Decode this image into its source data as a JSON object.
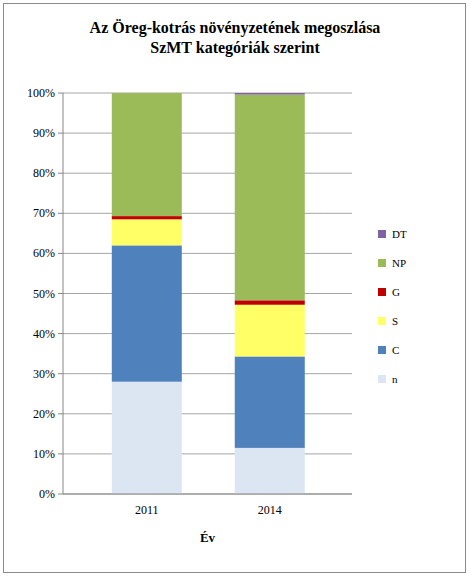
{
  "chart_data": {
    "type": "bar",
    "stacked": true,
    "title": "Az Öreg-kotrás növényzetének megoszlása SzMT kategóriák szerint",
    "x_label": "Év",
    "categories": [
      "2011",
      "2014"
    ],
    "series": [
      {
        "name": "n",
        "color": "#dce6f2",
        "values": [
          28,
          11.5
        ]
      },
      {
        "name": "C",
        "color": "#4f81bd",
        "values": [
          34,
          22.8
        ]
      },
      {
        "name": "S",
        "color": "#ffff66",
        "values": [
          6.5,
          12.9
        ]
      },
      {
        "name": "G",
        "color": "#c00000",
        "values": [
          0.8,
          1.1
        ]
      },
      {
        "name": "NP",
        "color": "#9bbb59",
        "values": [
          30.7,
          51.3
        ]
      },
      {
        "name": "DT",
        "color": "#8064a2",
        "values": [
          0,
          0.4
        ]
      }
    ],
    "ylim": [
      0,
      100
    ],
    "yticks": [
      {
        "value": 0,
        "label": "0%"
      },
      {
        "value": 10,
        "label": "10%"
      },
      {
        "value": 20,
        "label": "20%"
      },
      {
        "value": 30,
        "label": "30%"
      },
      {
        "value": 40,
        "label": "40%"
      },
      {
        "value": 50,
        "label": "50%"
      },
      {
        "value": 60,
        "label": "60%"
      },
      {
        "value": 70,
        "label": "70%"
      },
      {
        "value": 80,
        "label": "80%"
      },
      {
        "value": 90,
        "label": "90%"
      },
      {
        "value": 100,
        "label": "100%"
      }
    ],
    "grid": true,
    "legend": "right"
  }
}
